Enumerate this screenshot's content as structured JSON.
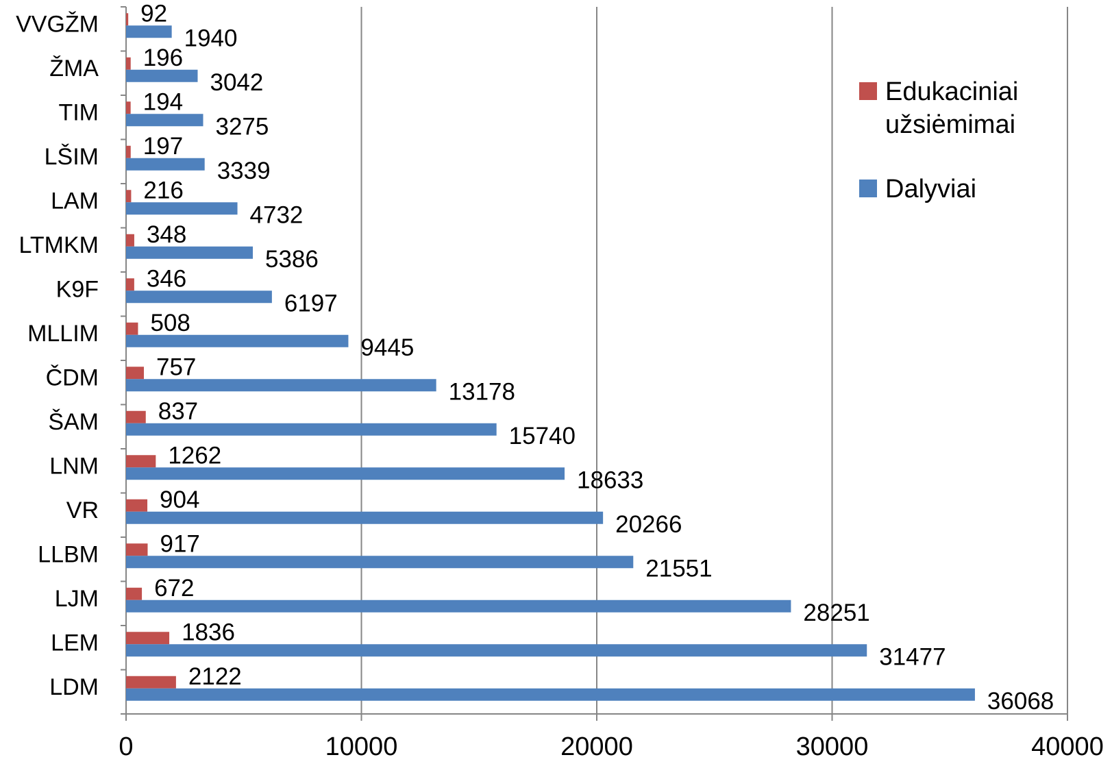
{
  "chart_data": {
    "type": "bar",
    "orientation": "horizontal",
    "categories": [
      "VVGŽM",
      "ŽMA",
      "TIM",
      "LŠIM",
      "LAM",
      "LTMKM",
      "K9F",
      "MLLIM",
      "ČDM",
      "ŠAM",
      "LNM",
      "VR",
      "LLBM",
      "LJM",
      "LEM",
      "LDM"
    ],
    "series": [
      {
        "name": "Edukaciniai užsiėmimai",
        "color": "#C0504D",
        "values": [
          92,
          196,
          194,
          197,
          216,
          348,
          346,
          508,
          757,
          837,
          1262,
          904,
          917,
          672,
          1836,
          2122
        ]
      },
      {
        "name": "Dalyviai",
        "color": "#4F81BD",
        "values": [
          1940,
          3042,
          3275,
          3339,
          4732,
          5386,
          6197,
          9445,
          13178,
          15740,
          18633,
          20266,
          21551,
          28251,
          31477,
          36068
        ]
      }
    ],
    "xlim": [
      0,
      40000
    ],
    "xticks": [
      0,
      10000,
      20000,
      30000,
      40000
    ],
    "grid": true,
    "data_labels": true,
    "legend": {
      "position": "right",
      "entries": [
        {
          "lines": [
            "Edukaciniai",
            "užsiėmimai"
          ],
          "color": "#C0504D"
        },
        {
          "lines": [
            "Dalyviai"
          ],
          "color": "#4F81BD"
        }
      ]
    }
  }
}
